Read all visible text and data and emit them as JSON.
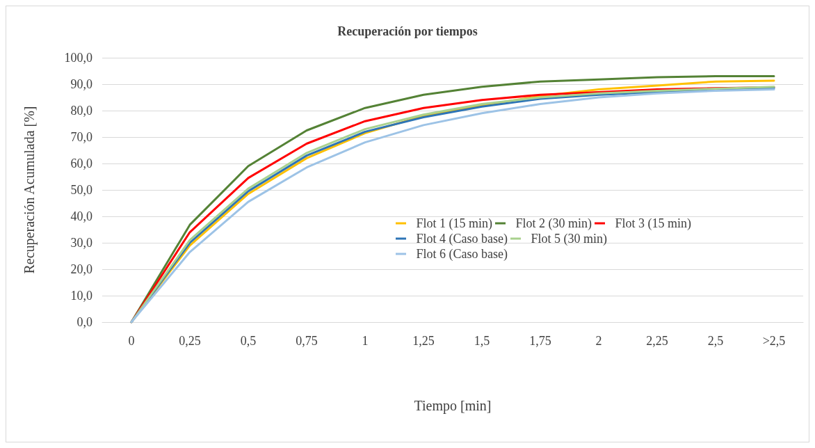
{
  "chart_data": {
    "type": "line",
    "title": "Recuperación por tiempos",
    "xlabel": "Tiempo [min]",
    "ylabel": "Recuperación Acumulada [%]",
    "categories": [
      "0",
      "0,25",
      "0,5",
      "0,75",
      "1",
      "1,25",
      "1,5",
      "1,75",
      "2",
      "2,25",
      "2,5",
      ">2,5"
    ],
    "series": [
      {
        "name": "Flot 1 (15 min)",
        "color": "#ffc000",
        "values": [
          0,
          29,
          48.5,
          62,
          71.5,
          78,
          82,
          85.5,
          88,
          89.5,
          91,
          91.3
        ]
      },
      {
        "name": "Flot 2 (30 min)",
        "color": "#548235",
        "values": [
          0,
          36.8,
          59,
          72.5,
          81,
          86,
          89,
          91,
          91.8,
          92.6,
          93,
          93
        ]
      },
      {
        "name": "Flot 3 (15 min)",
        "color": "#ff0000",
        "values": [
          0,
          34,
          54.5,
          67.5,
          76,
          81,
          84,
          86,
          87,
          88,
          88.5,
          88.8
        ]
      },
      {
        "name": "Flot 4 (Caso base)",
        "color": "#2e75b6",
        "values": [
          0,
          30,
          49.5,
          63,
          72,
          77.5,
          81.5,
          84.5,
          86,
          87,
          88,
          88.5
        ]
      },
      {
        "name": "Flot 5 (30 min)",
        "color": "#a9d18e",
        "values": [
          0,
          31,
          50.5,
          64,
          73,
          78.5,
          82.5,
          85,
          86.5,
          87.5,
          88.3,
          89
        ]
      },
      {
        "name": "Flot 6 (Caso base)",
        "color": "#9dc3e6",
        "values": [
          0,
          26.5,
          45.5,
          58.5,
          68,
          74.5,
          79,
          82.5,
          85,
          86.5,
          87.5,
          88
        ]
      }
    ],
    "ylim": [
      0,
      100
    ],
    "yticks": [
      {
        "value": 0,
        "label": "0,0"
      },
      {
        "value": 10,
        "label": "10,0"
      },
      {
        "value": 20,
        "label": "20,0"
      },
      {
        "value": 30,
        "label": "30,0"
      },
      {
        "value": 40,
        "label": "40,0"
      },
      {
        "value": 50,
        "label": "50,0"
      },
      {
        "value": 60,
        "label": "60,0"
      },
      {
        "value": 70,
        "label": "70,0"
      },
      {
        "value": 80,
        "label": "80,0"
      },
      {
        "value": 90,
        "label": "90,0"
      },
      {
        "value": 100,
        "label": "100,0"
      }
    ],
    "grid": "y",
    "legend": "right",
    "marker": "none",
    "line_style": "solid"
  }
}
